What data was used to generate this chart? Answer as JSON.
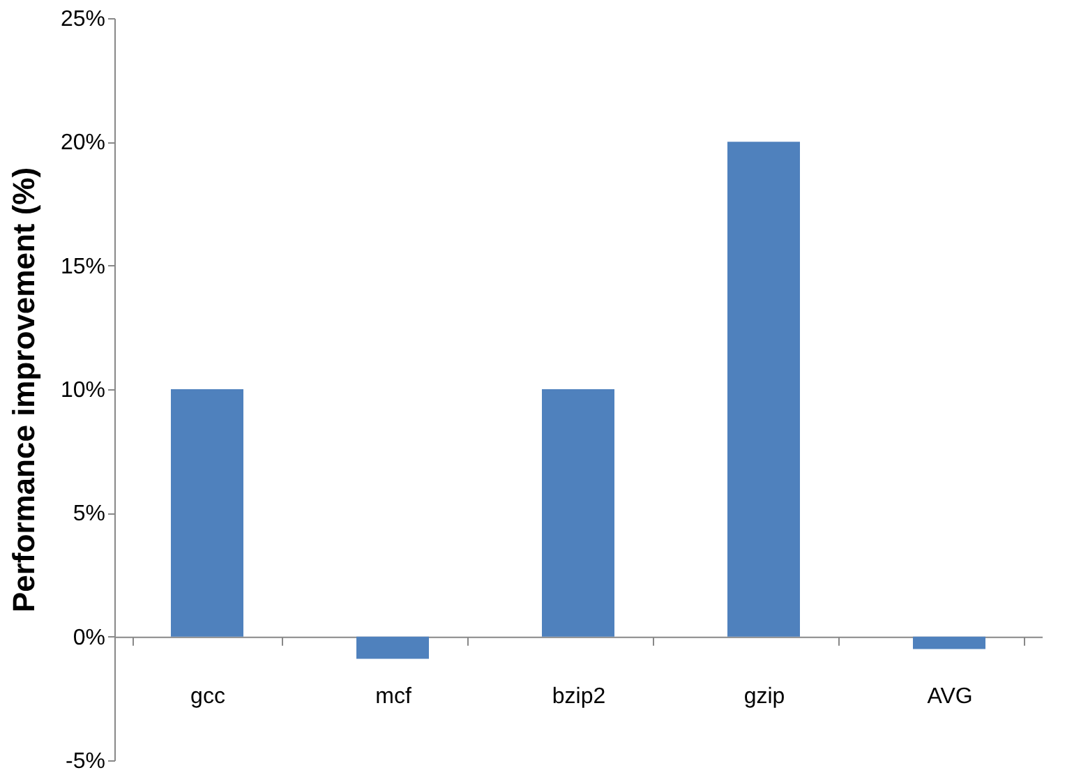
{
  "chart_data": {
    "type": "bar",
    "ylabel": "Performance improvement (%)",
    "categories": [
      "gcc",
      "mcf",
      "bzip2",
      "gzip",
      "AVG"
    ],
    "values": [
      10,
      -0.9,
      10,
      20,
      -0.5
    ],
    "color": "#4f81bd",
    "ylim": [
      -5,
      25
    ],
    "yticks": [
      {
        "value": -5,
        "label": "-5%"
      },
      {
        "value": 0,
        "label": "0%"
      },
      {
        "value": 5,
        "label": "5%"
      },
      {
        "value": 10,
        "label": "10%"
      },
      {
        "value": 15,
        "label": "15%"
      },
      {
        "value": 20,
        "label": "20%"
      },
      {
        "value": 25,
        "label": "25%"
      }
    ],
    "grid": false
  }
}
